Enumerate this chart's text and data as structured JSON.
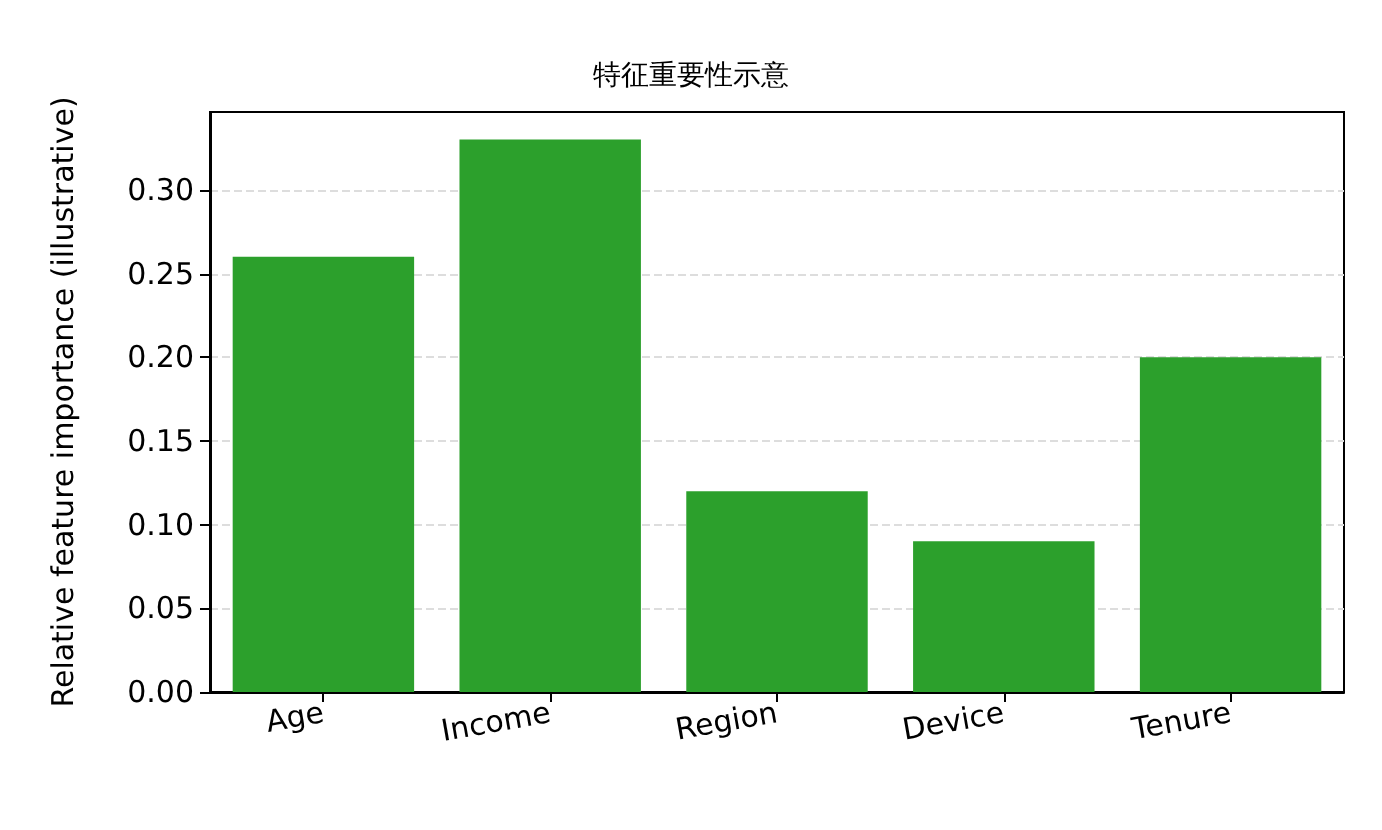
{
  "chart_data": {
    "type": "bar",
    "title": "特征重要性示意",
    "ylabel": "Relative feature importance (illustrative)",
    "categories": [
      "Age",
      "Income",
      "Region",
      "Device",
      "Tenure"
    ],
    "values": [
      0.26,
      0.33,
      0.12,
      0.09,
      0.2
    ],
    "color": "#2ca02c",
    "ylim": [
      0,
      0.3465
    ],
    "yticks": [
      {
        "value": 0,
        "label": "0.00"
      },
      {
        "value": 0.05,
        "label": "0.05"
      },
      {
        "value": 0.1,
        "label": "0.10"
      },
      {
        "value": 0.15,
        "label": "0.15"
      },
      {
        "value": 0.2,
        "label": "0.20"
      },
      {
        "value": 0.25,
        "label": "0.25"
      },
      {
        "value": 0.3,
        "label": "0.30"
      }
    ],
    "grid": "y"
  }
}
